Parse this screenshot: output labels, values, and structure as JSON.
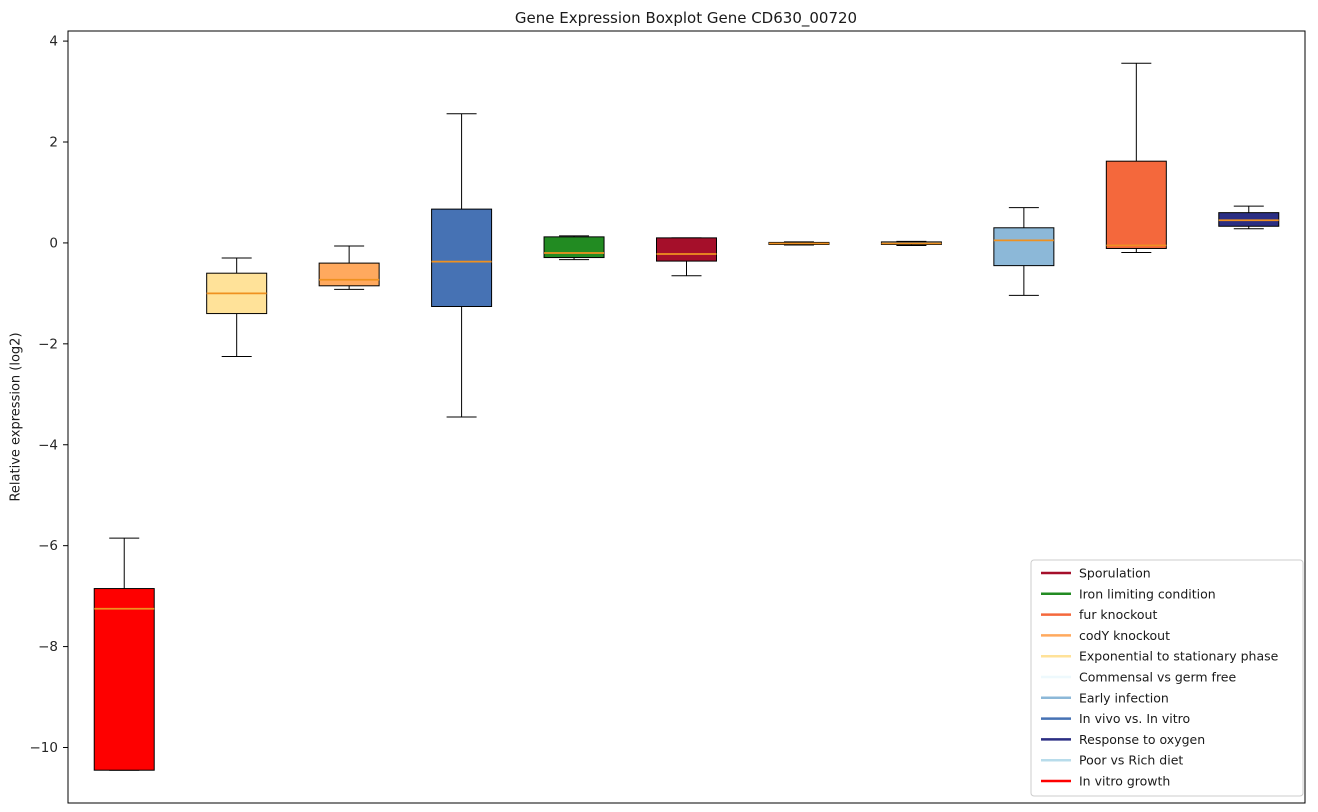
{
  "title": "Gene Expression Boxplot Gene CD630_00720",
  "ylabel": "Relative expression (log2)",
  "colors": {
    "background": "#ffffff",
    "axis": "#000000",
    "tick_label": "#262626",
    "median_line": "#ef9120",
    "legend_border": "#cccccc"
  },
  "chart_data": {
    "type": "boxplot",
    "title": "Gene Expression Boxplot Gene CD630_00720",
    "ylabel": "Relative expression (log2)",
    "ylim": [
      -11.1,
      4.2
    ],
    "yticks": [
      4,
      2,
      0,
      -2,
      -4,
      -6,
      -8,
      -10
    ],
    "grid": false,
    "legend_position": "lower right",
    "series": [
      {
        "name": "In vitro growth",
        "color": "#fe0000",
        "whisker_low": -10.45,
        "q1": -10.45,
        "median": -7.25,
        "q3": -6.85,
        "whisker_high": -5.85
      },
      {
        "name": "Exponential to stationary phase",
        "color": "#ffe299",
        "whisker_low": -2.25,
        "q1": -1.4,
        "median": -1.0,
        "q3": -0.6,
        "whisker_high": -0.3
      },
      {
        "name": "codY knockout",
        "color": "#ffa95e",
        "whisker_low": -0.92,
        "q1": -0.85,
        "median": -0.73,
        "q3": -0.4,
        "whisker_high": -0.06
      },
      {
        "name": "In vivo vs. In vitro",
        "color": "#4672b4",
        "whisker_low": -3.45,
        "q1": -1.26,
        "median": -0.37,
        "q3": 0.67,
        "whisker_high": 2.56
      },
      {
        "name": "Iron limiting condition",
        "color": "#228b22",
        "whisker_low": -0.33,
        "q1": -0.29,
        "median": -0.2,
        "q3": 0.12,
        "whisker_high": 0.14
      },
      {
        "name": "Sporulation",
        "color": "#a50f2a",
        "whisker_low": -0.65,
        "q1": -0.36,
        "median": -0.22,
        "q3": 0.1,
        "whisker_high": 0.1
      },
      {
        "name": "Commensal vs germ free",
        "color": "#eef9fd",
        "whisker_low": -0.04,
        "q1": -0.03,
        "median": -0.01,
        "q3": 0.01,
        "whisker_high": 0.02
      },
      {
        "name": "Poor vs Rich diet",
        "color": "#b8dceb",
        "whisker_low": -0.05,
        "q1": -0.03,
        "median": -0.01,
        "q3": 0.02,
        "whisker_high": 0.03
      },
      {
        "name": "Early infection",
        "color": "#8cb8d8",
        "whisker_low": -1.04,
        "q1": -0.45,
        "median": 0.05,
        "q3": 0.3,
        "whisker_high": 0.7
      },
      {
        "name": "fur knockout",
        "color": "#f4683c",
        "whisker_low": -0.19,
        "q1": -0.11,
        "median": -0.05,
        "q3": 1.62,
        "whisker_high": 3.56
      },
      {
        "name": "Response to oxygen",
        "color": "#2b2e83",
        "whisker_low": 0.28,
        "q1": 0.33,
        "median": 0.45,
        "q3": 0.6,
        "whisker_high": 0.73
      }
    ],
    "legend": [
      {
        "label": "Sporulation",
        "color": "#a50f2a"
      },
      {
        "label": "Iron limiting condition",
        "color": "#228b22"
      },
      {
        "label": "fur knockout",
        "color": "#f4683c"
      },
      {
        "label": "codY knockout",
        "color": "#ffa95e"
      },
      {
        "label": "Exponential to stationary phase",
        "color": "#ffe299"
      },
      {
        "label": "Commensal vs germ free",
        "color": "#eef9fd"
      },
      {
        "label": "Early infection",
        "color": "#8cb8d8"
      },
      {
        "label": "In vivo vs. In vitro",
        "color": "#4672b4"
      },
      {
        "label": "Response to oxygen",
        "color": "#2b2e83"
      },
      {
        "label": "Poor vs Rich diet",
        "color": "#b8dceb"
      },
      {
        "label": "In vitro growth",
        "color": "#fe0000"
      }
    ]
  }
}
